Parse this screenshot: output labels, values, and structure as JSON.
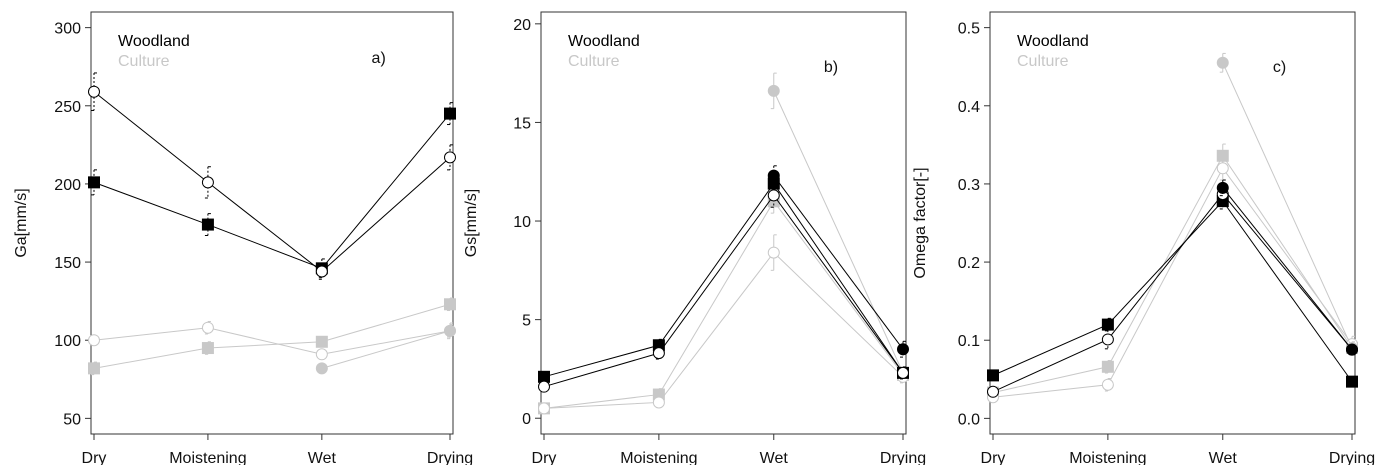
{
  "chart_data": [
    {
      "type": "line",
      "panel_label": "a)",
      "ylabel": "Ga[mm/s]",
      "categories": [
        "Dry",
        "Moistening",
        "Wet",
        "Drying"
      ],
      "ylim": [
        40,
        310
      ],
      "yticks": [
        50,
        100,
        150,
        200,
        250,
        300
      ],
      "legend": {
        "woodland": "Woodland",
        "culture": "Culture",
        "placement": "top-left"
      },
      "grid": false,
      "series": [
        {
          "group": "woodland",
          "marker": "square-filled",
          "values": [
            201,
            174,
            146,
            245
          ],
          "err": [
            8,
            7,
            6,
            7
          ]
        },
        {
          "group": "woodland",
          "marker": "circle-open",
          "values": [
            259,
            201,
            144,
            217
          ],
          "err": [
            12,
            10,
            5,
            8
          ]
        },
        {
          "group": "culture",
          "marker": "circle-open",
          "values": [
            100,
            108,
            91,
            106
          ],
          "err": [
            3,
            4,
            3,
            4
          ]
        },
        {
          "group": "culture",
          "marker": "square-filled",
          "values": [
            82,
            95,
            99,
            123
          ],
          "err": [
            4,
            4,
            3,
            4
          ]
        },
        {
          "group": "culture",
          "marker": "circle-filled",
          "values": [
            null,
            null,
            82,
            106
          ],
          "err": [
            0,
            0,
            2,
            5
          ]
        }
      ]
    },
    {
      "type": "line",
      "panel_label": "b)",
      "ylabel": "Gs[mm/s]",
      "categories": [
        "Dry",
        "Moistening",
        "Wet",
        "Drying"
      ],
      "ylim": [
        -0.8,
        20.6
      ],
      "yticks": [
        0,
        5,
        10,
        15,
        20
      ],
      "legend": {
        "woodland": "Woodland",
        "culture": "Culture",
        "placement": "top-left"
      },
      "grid": false,
      "series": [
        {
          "group": "woodland",
          "marker": "square-filled",
          "values": [
            2.1,
            3.7,
            11.9,
            2.3
          ],
          "err": [
            0.2,
            0.3,
            0.5,
            0.3
          ]
        },
        {
          "group": "woodland",
          "marker": "circle-open",
          "values": [
            1.6,
            3.3,
            11.3,
            2.3
          ],
          "err": [
            0.2,
            0.3,
            0.6,
            0.3
          ]
        },
        {
          "group": "woodland",
          "marker": "circle-filled",
          "values": [
            null,
            null,
            12.3,
            3.5
          ],
          "err": [
            0,
            0,
            0.5,
            0.4
          ]
        },
        {
          "group": "culture",
          "marker": "square-filled",
          "values": [
            0.5,
            1.2,
            11.0,
            2.2
          ],
          "err": [
            0.2,
            0.3,
            0.6,
            0.4
          ]
        },
        {
          "group": "culture",
          "marker": "circle-open",
          "values": [
            0.5,
            0.8,
            8.4,
            2.1
          ],
          "err": [
            0.1,
            0.2,
            0.9,
            0.3
          ]
        },
        {
          "group": "culture",
          "marker": "circle-filled",
          "values": [
            null,
            null,
            16.6,
            2.3
          ],
          "err": [
            0,
            0,
            0.9,
            0.3
          ]
        }
      ]
    },
    {
      "type": "line",
      "panel_label": "c)",
      "ylabel": "Omega factor[-]",
      "categories": [
        "Dry",
        "Moistening",
        "Wet",
        "Drying"
      ],
      "ylim": [
        -0.02,
        0.52
      ],
      "yticks": [
        0.0,
        0.1,
        0.2,
        0.3,
        0.4,
        0.5
      ],
      "legend": {
        "woodland": "Woodland",
        "culture": "Culture",
        "placement": "top-left"
      },
      "grid": false,
      "series": [
        {
          "group": "woodland",
          "marker": "square-filled",
          "values": [
            0.055,
            0.12,
            0.278,
            0.047
          ],
          "err": [
            0.005,
            0.008,
            0.01,
            0.003
          ]
        },
        {
          "group": "woodland",
          "marker": "circle-open",
          "values": [
            0.034,
            0.101,
            0.287,
            0.088
          ],
          "err": [
            0.005,
            0.012,
            0.01,
            0.005
          ]
        },
        {
          "group": "woodland",
          "marker": "circle-filled",
          "values": [
            null,
            null,
            0.295,
            0.088
          ],
          "err": [
            0,
            0,
            0.01,
            0.005
          ]
        },
        {
          "group": "culture",
          "marker": "square-filled",
          "values": [
            0.033,
            0.066,
            0.336,
            0.09
          ],
          "err": [
            0.004,
            0.008,
            0.015,
            0.008
          ]
        },
        {
          "group": "culture",
          "marker": "circle-open",
          "values": [
            0.027,
            0.043,
            0.32,
            0.095
          ],
          "err": [
            0.004,
            0.008,
            0.015,
            0.01
          ]
        },
        {
          "group": "culture",
          "marker": "circle-filled",
          "values": [
            null,
            null,
            0.455,
            0.09
          ],
          "err": [
            0,
            0,
            0.012,
            0.008
          ]
        }
      ]
    }
  ],
  "colors": {
    "woodland": "#000000",
    "culture": "#c8c8c8",
    "axis": "#333333"
  }
}
